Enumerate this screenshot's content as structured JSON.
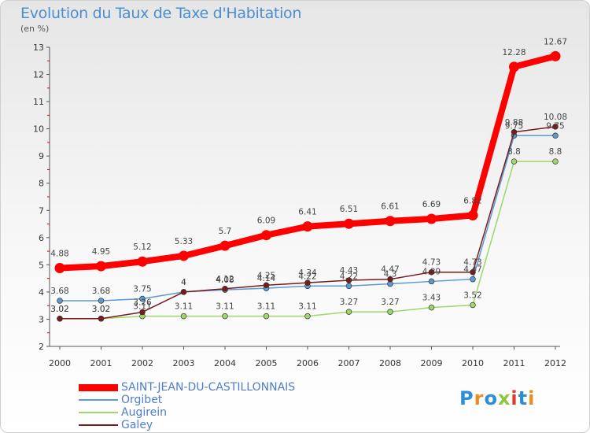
{
  "header": {
    "title": "Evolution du Taux de Taxe d'Habitation",
    "unit": "(en %)"
  },
  "logo": {
    "text": "Proxiti",
    "colors": [
      "#2a8fd8",
      "#f08a1c",
      "#2a8fd8",
      "#8cc63f",
      "#e23a2a",
      "#2a8fd8",
      "#f08a1c"
    ]
  },
  "chart_data": {
    "type": "line",
    "title": "Evolution du Taux de Taxe d'Habitation",
    "ylabel": "(en %)",
    "xlabel": "",
    "categories": [
      "2000",
      "2001",
      "2002",
      "2003",
      "2004",
      "2005",
      "2006",
      "2007",
      "2008",
      "2009",
      "2010",
      "2011",
      "2012"
    ],
    "yticks": [
      "2",
      "3",
      "4",
      "5",
      "6",
      "7",
      "8",
      "9",
      "10",
      "11",
      "12",
      "13"
    ],
    "ylim": [
      2,
      13
    ],
    "grid": false,
    "legend_position": "bottom-left",
    "series": [
      {
        "name": "SAINT-JEAN-DU-CASTILLONNAIS",
        "color": "#ff0000",
        "values": [
          4.88,
          4.95,
          5.12,
          5.33,
          5.7,
          6.09,
          6.41,
          6.51,
          6.61,
          6.69,
          6.82,
          12.28,
          12.67
        ],
        "labels": [
          "4.88",
          "4.95",
          "5.12",
          "5.33",
          "5.7",
          "6.09",
          "6.41",
          "6.51",
          "6.61",
          "6.69",
          "6.82",
          "12.28",
          "12.67"
        ]
      },
      {
        "name": "Orgibet",
        "color": "#5b9bd5",
        "values": [
          3.68,
          3.68,
          3.75,
          4.0,
          4.08,
          4.14,
          4.22,
          4.22,
          4.3,
          4.39,
          4.47,
          9.75,
          9.75
        ],
        "labels": [
          "3.68",
          "3.68",
          "3.75",
          "4",
          "4.08",
          "4.14",
          "4.22",
          "4.22",
          "4.3",
          "4.39",
          "4.47",
          "9.75",
          "9.75"
        ]
      },
      {
        "name": "Augirein",
        "color": "#9ed86b",
        "values": [
          3.02,
          3.02,
          3.11,
          3.11,
          3.11,
          3.11,
          3.11,
          3.27,
          3.27,
          3.43,
          3.52,
          8.8,
          8.8
        ],
        "labels": [
          "3.02",
          "3.02",
          "3.11",
          "3.11",
          "3.11",
          "3.11",
          "3.11",
          "3.27",
          "3.27",
          "3.43",
          "3.52",
          "8.8",
          "8.8"
        ]
      },
      {
        "name": "Galey",
        "color": "#7a1a1a",
        "values": [
          3.02,
          3.02,
          3.26,
          4.0,
          4.12,
          4.25,
          4.34,
          4.43,
          4.47,
          4.73,
          4.73,
          9.88,
          10.08
        ],
        "labels": [
          "3.02",
          "3.02",
          "3.26",
          "4",
          "4.12",
          "4.25",
          "4.34",
          "4.43",
          "4.47",
          "4.73",
          "4.73",
          "9.88",
          "10.08"
        ]
      }
    ]
  }
}
